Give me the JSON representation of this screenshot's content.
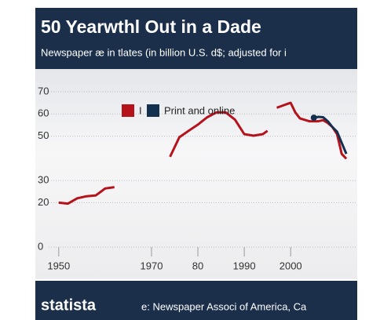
{
  "chart_data": {
    "type": "line",
    "title": "50 Yearwthl Out in a Dade",
    "subtitle": "Newspaper æ in tlates (in billion U.S. d$; adjusted for i",
    "x": [
      1950,
      1952,
      1954,
      1956,
      1958,
      1960,
      1962,
      1965,
      1974,
      1976,
      1978,
      1980,
      1982,
      1984,
      1986,
      1988,
      1990,
      1992,
      1994,
      1995,
      1996,
      1997,
      1999,
      2000,
      2001,
      2002,
      2004,
      2005,
      2006,
      2007,
      2008,
      2009,
      2010,
      2011,
      2012
    ],
    "series": [
      {
        "name": "I",
        "color": "#b5121b",
        "values": [
          20,
          19.6,
          22,
          22.9,
          23.3,
          26.4,
          27,
          null,
          40.7,
          49.5,
          52.4,
          55.2,
          58.5,
          60.7,
          60.7,
          57.4,
          50.9,
          50.2,
          50.9,
          52.4,
          null,
          62.8,
          64.3,
          65,
          60.7,
          58,
          56.7,
          56.7,
          56.7,
          57.2,
          55.9,
          54.1,
          50.9,
          42,
          39.8
        ]
      },
      {
        "name": "Print and online",
        "color": "#13304f",
        "values": [
          null,
          null,
          null,
          null,
          null,
          null,
          null,
          null,
          null,
          null,
          null,
          null,
          null,
          null,
          null,
          null,
          null,
          null,
          null,
          null,
          null,
          null,
          null,
          null,
          null,
          null,
          null,
          58.3,
          58.7,
          58.5,
          56.7,
          54.1,
          52,
          47,
          42
        ]
      }
    ],
    "xlim": [
      1948,
      2013
    ],
    "xticks": [
      1950,
      1970,
      {
        "value": 1980,
        "label": "80"
      },
      1990,
      2000
    ],
    "ylim": [
      0,
      70
    ],
    "yticks": [
      0,
      20,
      30,
      50,
      60,
      70
    ],
    "grid": true,
    "legend": "top",
    "brand": "statista",
    "source": "e: Newspaper Associ of America, Ca"
  }
}
